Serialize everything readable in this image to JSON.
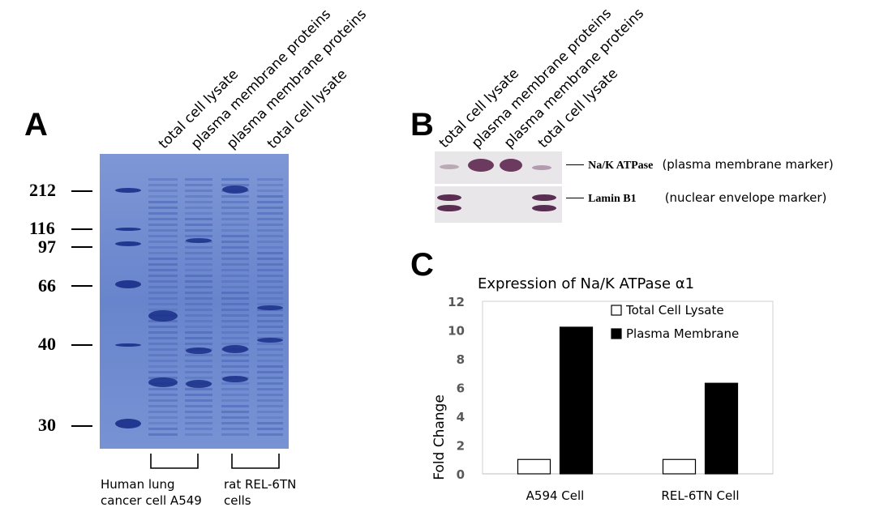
{
  "panelA": {
    "letter": "A",
    "lane_labels": [
      "total cell lysate",
      "plasma membrane proteins",
      "plasma membrane proteins",
      "total cell lysate"
    ],
    "mw_markers": [
      "212",
      "116",
      "97",
      "66",
      "40",
      "30"
    ],
    "groups": [
      {
        "line1": "Human lung",
        "line2": "cancer cell A549"
      },
      {
        "line1": "rat REL-6TN",
        "line2": "cells"
      }
    ]
  },
  "panelB": {
    "letter": "B",
    "lane_labels": [
      "total cell lysate",
      "plasma membrane proteins",
      "plasma membrane proteins",
      "total cell lysate"
    ],
    "rows": [
      {
        "name": "Na/K ATPase",
        "desc": "(plasma membrane marker)"
      },
      {
        "name": "Lamin B1",
        "desc": "(nuclear envelope marker)"
      }
    ]
  },
  "panelC": {
    "letter": "C",
    "chart_data": {
      "type": "bar",
      "title": "Expression of Na/K ATPase α1",
      "ylabel": "Fold Change",
      "xlabel": "",
      "categories": [
        "A594 Cell",
        "REL-6TN Cell"
      ],
      "series": [
        {
          "name": "Total Cell Lysate",
          "values": [
            1,
            1
          ],
          "color": "#ffffff"
        },
        {
          "name": "Plasma Membrane",
          "values": [
            10.2,
            6.3
          ],
          "color": "#000000"
        }
      ],
      "ylim": [
        0,
        12
      ],
      "yticks": [
        "0",
        "2",
        "4",
        "6",
        "8",
        "10",
        "12"
      ],
      "grid": false,
      "legend": "top-right"
    }
  },
  "colors": {
    "gel_blue": "#5a78c8",
    "band_dark": "#1a2f88",
    "blot_band": "#6b3a5e"
  }
}
